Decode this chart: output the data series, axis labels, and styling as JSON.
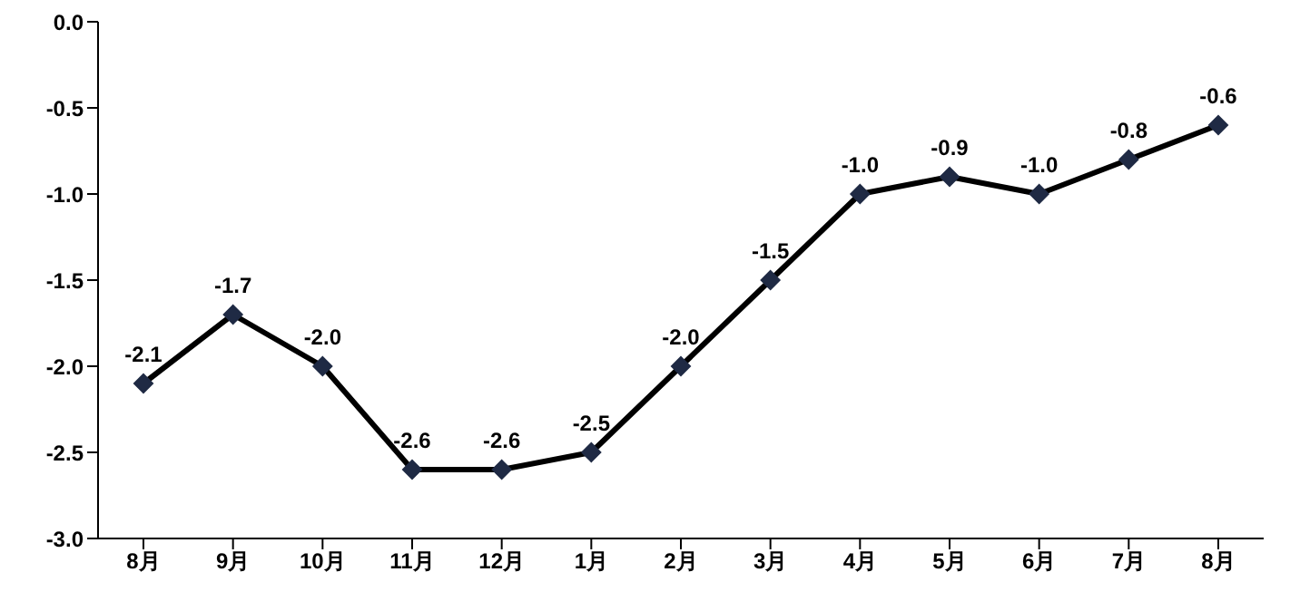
{
  "chart_data": {
    "type": "line",
    "categories": [
      "8月",
      "9月",
      "10月",
      "11月",
      "12月",
      "1月",
      "2月",
      "3月",
      "4月",
      "5月",
      "6月",
      "7月",
      "8月"
    ],
    "series": [
      {
        "color": "#000000",
        "values": [
          -2.1,
          -1.7,
          -2.0,
          -2.6,
          -2.6,
          -2.5,
          -2.0,
          -1.5,
          -1.0,
          -0.9,
          -1.0,
          -0.8,
          -0.6
        ],
        "value_labels": [
          "-2.1",
          "-1.7",
          "-2.0",
          "-2.6",
          "-2.6",
          "-2.5",
          "-2.0",
          "-1.5",
          "-1.0",
          "-0.9",
          "-1.0",
          "-0.8",
          "-0.6"
        ]
      }
    ],
    "ylim": [
      -3,
      0
    ],
    "yticks": [
      {
        "value": 0,
        "label": "0.0"
      },
      -0.5,
      {
        "value": -1,
        "label": "-1.0"
      },
      -1.5,
      {
        "value": -2,
        "label": "-2.0"
      },
      -2.5,
      {
        "value": -3,
        "label": "-3.0"
      }
    ],
    "grid": false,
    "legend": false,
    "marker": "diamond",
    "line_style": "solid"
  }
}
